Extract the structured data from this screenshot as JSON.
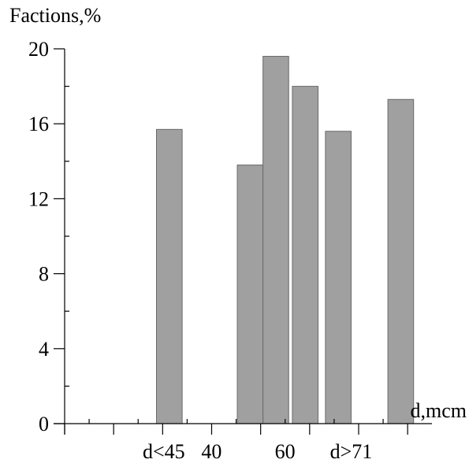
{
  "chart_data": {
    "type": "bar",
    "ylabel": "Factions,%",
    "xlabel": "d,mcm",
    "ylim": [
      0,
      20
    ],
    "y_ticks": [
      0,
      4,
      8,
      12,
      16,
      20
    ],
    "x_tick_labels": [
      {
        "label": "d<45",
        "x": 27
      },
      {
        "label": "40",
        "x": 40
      },
      {
        "label": "60",
        "x": 60
      },
      {
        "label": "d>71",
        "x": 78
      }
    ],
    "bars": [
      {
        "x_start": 25,
        "x_end": 32,
        "value": 15.7
      },
      {
        "x_start": 47,
        "x_end": 54,
        "value": 13.8
      },
      {
        "x_start": 54,
        "x_end": 61,
        "value": 19.6
      },
      {
        "x_start": 62,
        "x_end": 69,
        "value": 18.0
      },
      {
        "x_start": 71,
        "x_end": 78,
        "value": 15.6
      },
      {
        "x_start": 88,
        "x_end": 95,
        "value": 17.3
      }
    ],
    "grid": false,
    "bar_color": "#a0a0a0"
  }
}
